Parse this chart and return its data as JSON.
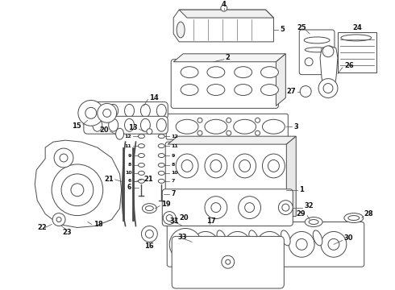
{
  "bg_color": "#ffffff",
  "line_color": "#4a4a4a",
  "label_color": "#111111",
  "fig_width": 4.9,
  "fig_height": 3.6,
  "dpi": 100
}
